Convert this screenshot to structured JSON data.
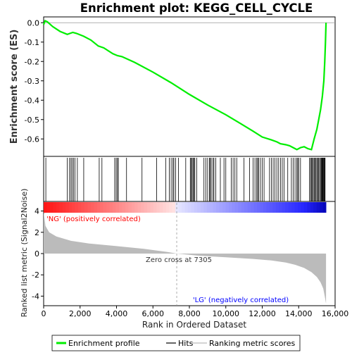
{
  "chart_data": {
    "type": "line",
    "title": "Enrichment plot: KEGG_CELL_CYCLE",
    "xlabel": "Rank in Ordered Dataset",
    "ylabel_top": "Enrichment score (ES)",
    "ylabel_bottom": "Ranked list metric (Signal2Noise)",
    "x_ticks": [
      0,
      2000,
      4000,
      6000,
      8000,
      10000,
      12000,
      14000,
      16000
    ],
    "x_tick_labels": [
      "0",
      "2,000",
      "4,000",
      "6,000",
      "8,000",
      "10,000",
      "12,000",
      "14,000",
      "16,000"
    ],
    "xlim": [
      0,
      16000
    ],
    "es_ylim": [
      -0.69,
      0.03
    ],
    "es_ticks": [
      0.0,
      -0.1,
      -0.2,
      -0.3,
      -0.4,
      -0.5,
      -0.6
    ],
    "es_tick_labels": [
      "0.0",
      "-0.1",
      "-0.2",
      "-0.3",
      "-0.4",
      "-0.5",
      "-0.6"
    ],
    "metric_ylim": [
      -4.9,
      4.9
    ],
    "metric_ticks": [
      4,
      2,
      0,
      -2,
      -4
    ],
    "metric_tick_labels": [
      "4",
      "2",
      "0",
      "-2",
      "-4"
    ],
    "n_genes": 15500,
    "zero_cross_rank": 7305,
    "zero_cross_label": "Zero cross at 7305",
    "pos_label": "'NG' (positively correlated)",
    "neg_label": "'LG' (negatively correlated)",
    "series": [
      {
        "name": "Enrichment profile",
        "color": "#00ee00",
        "x": [
          0,
          80,
          200,
          500,
          900,
          1300,
          1450,
          1600,
          1800,
          2200,
          2600,
          3000,
          3300,
          3800,
          4050,
          4300,
          5000,
          6000,
          7000,
          8000,
          9000,
          10000,
          10800,
          11500,
          12000,
          12500,
          12800,
          13000,
          13300,
          13500,
          13700,
          13900,
          14100,
          14300,
          14500,
          14700,
          14850,
          15000,
          15100,
          15200,
          15300,
          15380,
          15430,
          15470,
          15500
        ],
        "y": [
          -0.01,
          0.01,
          0.005,
          -0.02,
          -0.045,
          -0.06,
          -0.055,
          -0.05,
          -0.055,
          -0.07,
          -0.09,
          -0.12,
          -0.13,
          -0.16,
          -0.17,
          -0.175,
          -0.205,
          -0.255,
          -0.31,
          -0.37,
          -0.425,
          -0.475,
          -0.52,
          -0.56,
          -0.59,
          -0.605,
          -0.615,
          -0.625,
          -0.63,
          -0.635,
          -0.645,
          -0.655,
          -0.645,
          -0.64,
          -0.65,
          -0.655,
          -0.6,
          -0.55,
          -0.5,
          -0.45,
          -0.38,
          -0.3,
          -0.2,
          -0.1,
          0.0
        ]
      },
      {
        "name": "Hits",
        "color": "#000000",
        "positions": [
          120,
          1300,
          1420,
          1500,
          1560,
          1640,
          1720,
          1850,
          2200,
          3050,
          3200,
          3900,
          3980,
          4050,
          4100,
          4550,
          5400,
          6200,
          6700,
          6900,
          7000,
          7100,
          7150,
          7250,
          7400,
          7800,
          8050,
          8100,
          8150,
          8200,
          8250,
          8300,
          8400,
          8800,
          8900,
          9000,
          9100,
          9150,
          9200,
          9300,
          9350,
          9450,
          9700,
          9900,
          10000,
          10300,
          10400,
          10500,
          10600,
          11000,
          11300,
          11500,
          11600,
          11700,
          11750,
          11800,
          11900,
          12000,
          12100,
          12400,
          12500,
          12600,
          12700,
          12800,
          12900,
          13000,
          13100,
          13200,
          13400,
          13600,
          13700,
          13800,
          13900,
          13950,
          14000,
          14100,
          14600,
          14650,
          14700,
          14750,
          14800,
          14850,
          14900,
          14950,
          15000,
          15050,
          15100,
          15150,
          15200,
          15250,
          15280,
          15300,
          15330,
          15360,
          15390,
          15420,
          15450
        ]
      },
      {
        "name": "Ranking metric scores",
        "color": "#bbbbbb",
        "x": [
          0,
          100,
          300,
          700,
          1500,
          2500,
          4000,
          5500,
          6800,
          7305,
          8500,
          10000,
          11500,
          12500,
          13300,
          13800,
          14300,
          14700,
          15000,
          15200,
          15350,
          15450,
          15500
        ],
        "y": [
          3.9,
          2.6,
          2.0,
          1.6,
          1.2,
          0.95,
          0.7,
          0.45,
          0.15,
          0.0,
          -0.2,
          -0.35,
          -0.5,
          -0.65,
          -0.85,
          -1.05,
          -1.35,
          -1.75,
          -2.2,
          -2.7,
          -3.3,
          -4.2,
          -4.7
        ]
      }
    ],
    "legend": {
      "placement": "bottom",
      "items": [
        "Enrichment profile",
        "Hits",
        "Ranking metric scores"
      ]
    }
  }
}
